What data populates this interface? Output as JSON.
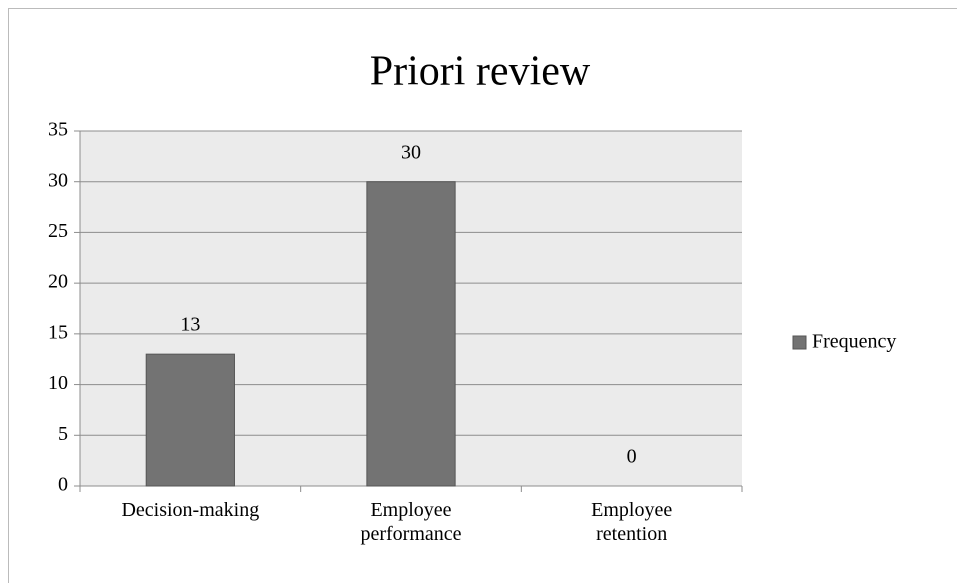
{
  "chart_data": {
    "type": "bar",
    "title": "Priori review",
    "categories": [
      "Decision-making",
      "Employee performance",
      "Employee retention"
    ],
    "series": [
      {
        "name": "Frequency",
        "color": "#737373",
        "values": [
          13,
          30,
          0
        ]
      }
    ],
    "ylim": [
      0,
      35
    ],
    "yticks": [
      0,
      5,
      10,
      15,
      20,
      25,
      30,
      35
    ],
    "grid": true,
    "legend": "right"
  }
}
